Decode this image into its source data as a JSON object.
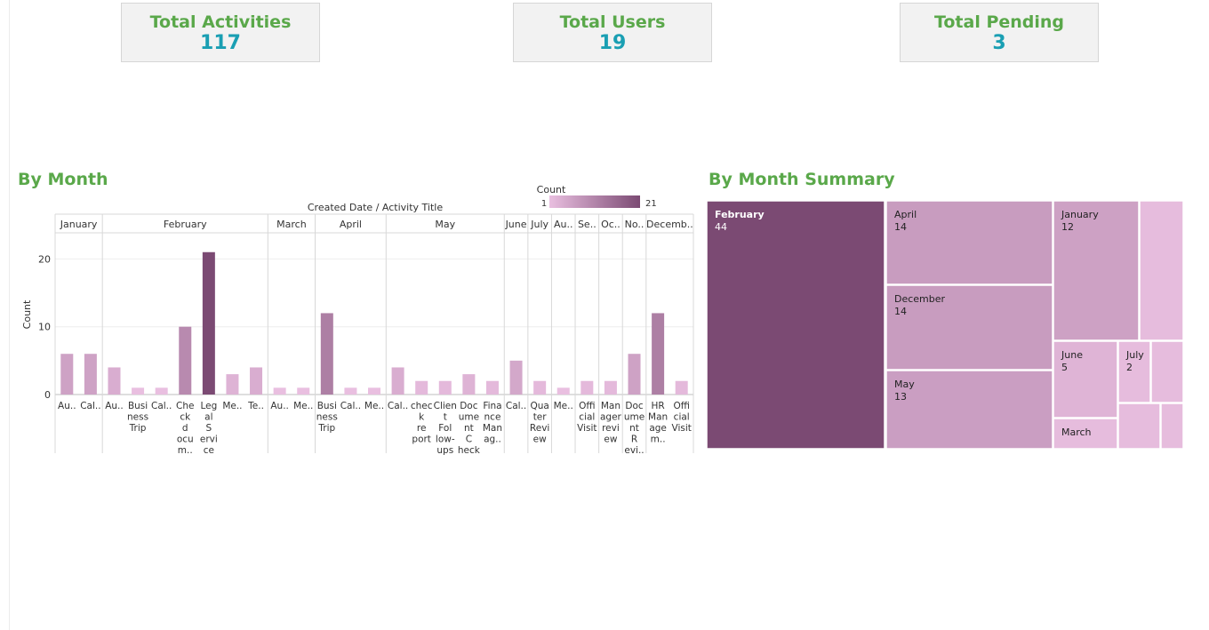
{
  "kpis": [
    {
      "label": "Total Activities",
      "value": "117"
    },
    {
      "label": "Total Users",
      "value": "19"
    },
    {
      "label": "Total Pending",
      "value": "3"
    }
  ],
  "sections": {
    "by_month": "By Month",
    "by_month_summary": "By Month Summary"
  },
  "colors": {
    "title_green": "#5aa84a",
    "kpi_value_teal": "#1a9fb3",
    "count_min": "#e9bfe0",
    "count_max": "#7b4a73"
  },
  "chart_data": [
    {
      "type": "bar",
      "header": "Created Date  /  Activity Title",
      "ylabel": "Count",
      "ylim": [
        0,
        24
      ],
      "yticks": [
        0,
        10,
        20
      ],
      "legend": {
        "title": "Count",
        "min": "1",
        "max": "21",
        "placement": "top-right"
      },
      "groups": [
        {
          "label": "January",
          "bars": [
            {
              "label": "Au..",
              "value": 6
            },
            {
              "label": "Cal..",
              "value": 6
            }
          ]
        },
        {
          "label": "February",
          "bars": [
            {
              "label": "Au..",
              "value": 4
            },
            {
              "label": "Busi ness Trip",
              "value": 1
            },
            {
              "label": "Cal..",
              "value": 1
            },
            {
              "label": "Che ck d ocu m..",
              "value": 10
            },
            {
              "label": "Leg al S ervi ce",
              "value": 21
            },
            {
              "label": "Me..",
              "value": 3
            },
            {
              "label": "Te..",
              "value": 4
            }
          ]
        },
        {
          "label": "March",
          "bars": [
            {
              "label": "Au..",
              "value": 1
            },
            {
              "label": "Me..",
              "value": 1
            }
          ]
        },
        {
          "label": "April",
          "bars": [
            {
              "label": "Busi ness Trip",
              "value": 12
            },
            {
              "label": "Cal..",
              "value": 1
            },
            {
              "label": "Me..",
              "value": 1
            }
          ]
        },
        {
          "label": "May",
          "bars": [
            {
              "label": "Cal..",
              "value": 4
            },
            {
              "label": "chec k re port",
              "value": 2
            },
            {
              "label": "Clien t Fol low- ups",
              "value": 2
            },
            {
              "label": "Doc ume nt C heck",
              "value": 3
            },
            {
              "label": "Fina nce Man ag..",
              "value": 2
            }
          ]
        },
        {
          "label": "June",
          "bars": [
            {
              "label": "Cal..",
              "value": 5
            }
          ]
        },
        {
          "label": "July",
          "bars": [
            {
              "label": "Qua ter Revi ew",
              "value": 2
            }
          ]
        },
        {
          "label": "Au..",
          "bars": [
            {
              "label": "Me..",
              "value": 1
            }
          ]
        },
        {
          "label": "Se..",
          "bars": [
            {
              "label": "Offi cial Visit",
              "value": 2
            }
          ]
        },
        {
          "label": "Oc..",
          "bars": [
            {
              "label": "Man ager revi ew",
              "value": 2
            }
          ]
        },
        {
          "label": "No..",
          "bars": [
            {
              "label": "Doc ume nt R evi..",
              "value": 6
            }
          ]
        },
        {
          "label": "Decemb..",
          "bars": [
            {
              "label": "HR Man age m..",
              "value": 12
            },
            {
              "label": "Offi cial Visit",
              "value": 2
            }
          ]
        }
      ]
    },
    {
      "type": "treemap",
      "items": [
        {
          "label": "February",
          "value": 44,
          "show_value": true
        },
        {
          "label": "April",
          "value": 14,
          "show_value": true
        },
        {
          "label": "December",
          "value": 14,
          "show_value": true
        },
        {
          "label": "May",
          "value": 13,
          "show_value": true
        },
        {
          "label": "January",
          "value": 12,
          "show_value": true
        },
        {
          "label": "June",
          "value": 5,
          "show_value": true
        },
        {
          "label": "July",
          "value": 2,
          "show_value": true
        },
        {
          "label": "March",
          "value": null,
          "show_value": false
        },
        {
          "label": "",
          "value": null,
          "show_value": false
        },
        {
          "label": "",
          "value": null,
          "show_value": false
        },
        {
          "label": "",
          "value": null,
          "show_value": false
        },
        {
          "label": "",
          "value": null,
          "show_value": false
        }
      ]
    }
  ]
}
